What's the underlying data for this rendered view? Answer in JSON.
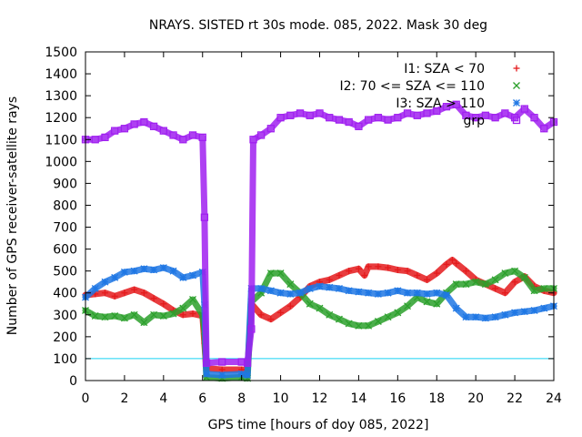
{
  "chart_data": {
    "type": "scatter",
    "title": "NRAYS. SISTED rt 30s mode. 085, 2022. Mask 30 deg",
    "xlabel": "GPS time [hours of doy 085, 2022]",
    "ylabel": "Number of GPS receiver-satellite rays",
    "xlim": [
      0,
      24
    ],
    "ylim": [
      0,
      1500
    ],
    "xticks": [
      "0",
      "2",
      "4",
      "6",
      "8",
      "10",
      "12",
      "14",
      "16",
      "18",
      "20",
      "22",
      "24"
    ],
    "yticks": [
      "0",
      "100",
      "200",
      "300",
      "400",
      "500",
      "600",
      "700",
      "800",
      "900",
      "1000",
      "1100",
      "1200",
      "1300",
      "1400",
      "1500"
    ],
    "grid": false,
    "legend_position": "top-right",
    "reference_line": {
      "y": 100,
      "color": "#19d3f3"
    },
    "series": [
      {
        "name": "I1: SZA < 70",
        "marker": "+",
        "color": "#e41a1c",
        "points": [
          [
            0,
            390
          ],
          [
            0.5,
            395
          ],
          [
            1,
            400
          ],
          [
            1.5,
            385
          ],
          [
            2,
            400
          ],
          [
            2.5,
            415
          ],
          [
            3,
            400
          ],
          [
            3.5,
            375
          ],
          [
            4,
            350
          ],
          [
            4.5,
            320
          ],
          [
            5,
            300
          ],
          [
            5.5,
            305
          ],
          [
            6,
            295
          ],
          [
            6.1,
            170
          ],
          [
            6.2,
            55
          ],
          [
            7,
            50
          ],
          [
            8,
            50
          ],
          [
            8.3,
            45
          ],
          [
            8.5,
            350
          ],
          [
            9,
            300
          ],
          [
            9.5,
            280
          ],
          [
            10,
            310
          ],
          [
            10.5,
            340
          ],
          [
            11,
            380
          ],
          [
            11.5,
            430
          ],
          [
            12,
            450
          ],
          [
            12.5,
            460
          ],
          [
            13,
            480
          ],
          [
            13.5,
            500
          ],
          [
            14,
            510
          ],
          [
            14.3,
            480
          ],
          [
            14.5,
            520
          ],
          [
            15,
            520
          ],
          [
            15.5,
            515
          ],
          [
            16,
            505
          ],
          [
            16.5,
            500
          ],
          [
            17,
            480
          ],
          [
            17.5,
            460
          ],
          [
            18,
            490
          ],
          [
            18.5,
            530
          ],
          [
            18.8,
            550
          ],
          [
            19,
            535
          ],
          [
            19.5,
            500
          ],
          [
            20,
            460
          ],
          [
            20.5,
            440
          ],
          [
            21,
            420
          ],
          [
            21.5,
            400
          ],
          [
            22,
            450
          ],
          [
            22.5,
            475
          ],
          [
            23,
            430
          ],
          [
            23.5,
            410
          ],
          [
            24,
            400
          ]
        ]
      },
      {
        "name": "I2: 70 <= SZA <= 110",
        "marker": "x",
        "color": "#2ca02c",
        "points": [
          [
            0,
            320
          ],
          [
            0.5,
            295
          ],
          [
            1,
            290
          ],
          [
            1.5,
            295
          ],
          [
            2,
            285
          ],
          [
            2.5,
            300
          ],
          [
            3,
            265
          ],
          [
            3.5,
            300
          ],
          [
            4,
            295
          ],
          [
            4.5,
            305
          ],
          [
            5,
            330
          ],
          [
            5.5,
            370
          ],
          [
            6,
            300
          ],
          [
            6.1,
            225
          ],
          [
            6.2,
            15
          ],
          [
            7,
            10
          ],
          [
            8,
            15
          ],
          [
            8.3,
            10
          ],
          [
            8.5,
            360
          ],
          [
            9,
            400
          ],
          [
            9.5,
            490
          ],
          [
            10,
            490
          ],
          [
            10.5,
            440
          ],
          [
            11,
            400
          ],
          [
            11.5,
            350
          ],
          [
            12,
            330
          ],
          [
            12.5,
            300
          ],
          [
            13,
            280
          ],
          [
            13.5,
            260
          ],
          [
            14,
            250
          ],
          [
            14.5,
            250
          ],
          [
            15,
            270
          ],
          [
            15.5,
            290
          ],
          [
            16,
            310
          ],
          [
            16.5,
            340
          ],
          [
            17,
            380
          ],
          [
            17.5,
            360
          ],
          [
            18,
            350
          ],
          [
            18.5,
            400
          ],
          [
            19,
            440
          ],
          [
            19.5,
            440
          ],
          [
            20,
            450
          ],
          [
            20.5,
            440
          ],
          [
            21,
            460
          ],
          [
            21.5,
            490
          ],
          [
            22,
            500
          ],
          [
            22.5,
            470
          ],
          [
            23,
            410
          ],
          [
            23.5,
            420
          ],
          [
            24,
            420
          ]
        ]
      },
      {
        "name": "I3: SZA > 110",
        "marker": "*",
        "color": "#1f77e4",
        "points": [
          [
            0,
            380
          ],
          [
            0.5,
            420
          ],
          [
            1,
            450
          ],
          [
            1.5,
            470
          ],
          [
            2,
            495
          ],
          [
            2.5,
            500
          ],
          [
            3,
            510
          ],
          [
            3.5,
            505
          ],
          [
            4,
            515
          ],
          [
            4.5,
            500
          ],
          [
            5,
            470
          ],
          [
            5.5,
            480
          ],
          [
            6,
            495
          ],
          [
            6.1,
            345
          ],
          [
            6.2,
            30
          ],
          [
            7,
            25
          ],
          [
            8,
            30
          ],
          [
            8.3,
            25
          ],
          [
            8.5,
            420
          ],
          [
            9,
            420
          ],
          [
            9.5,
            410
          ],
          [
            10,
            400
          ],
          [
            10.5,
            395
          ],
          [
            11,
            400
          ],
          [
            11.5,
            420
          ],
          [
            12,
            430
          ],
          [
            12.5,
            425
          ],
          [
            13,
            420
          ],
          [
            13.5,
            410
          ],
          [
            14,
            405
          ],
          [
            14.5,
            400
          ],
          [
            15,
            395
          ],
          [
            15.5,
            400
          ],
          [
            16,
            410
          ],
          [
            16.5,
            400
          ],
          [
            17,
            400
          ],
          [
            17.5,
            395
          ],
          [
            18,
            400
          ],
          [
            18.5,
            390
          ],
          [
            19,
            330
          ],
          [
            19.5,
            290
          ],
          [
            20,
            290
          ],
          [
            20.5,
            285
          ],
          [
            21,
            290
          ],
          [
            21.5,
            300
          ],
          [
            22,
            310
          ],
          [
            22.5,
            315
          ],
          [
            23,
            320
          ],
          [
            23.5,
            330
          ],
          [
            24,
            340
          ]
        ]
      },
      {
        "name": "grp",
        "marker": "square",
        "color": "#a020f0",
        "points": [
          [
            0,
            1100
          ],
          [
            0.5,
            1100
          ],
          [
            1,
            1110
          ],
          [
            1.5,
            1140
          ],
          [
            2,
            1150
          ],
          [
            2.5,
            1170
          ],
          [
            3,
            1180
          ],
          [
            3.5,
            1160
          ],
          [
            4,
            1140
          ],
          [
            4.5,
            1120
          ],
          [
            5,
            1100
          ],
          [
            5.5,
            1120
          ],
          [
            6,
            1110
          ],
          [
            6.1,
            745
          ],
          [
            6.2,
            80
          ],
          [
            7,
            85
          ],
          [
            8,
            85
          ],
          [
            8.3,
            80
          ],
          [
            8.5,
            235
          ],
          [
            8.6,
            1100
          ],
          [
            9,
            1120
          ],
          [
            9.5,
            1150
          ],
          [
            10,
            1200
          ],
          [
            10.5,
            1210
          ],
          [
            11,
            1220
          ],
          [
            11.5,
            1210
          ],
          [
            12,
            1220
          ],
          [
            12.5,
            1200
          ],
          [
            13,
            1190
          ],
          [
            13.5,
            1180
          ],
          [
            14,
            1160
          ],
          [
            14.5,
            1190
          ],
          [
            15,
            1200
          ],
          [
            15.5,
            1190
          ],
          [
            16,
            1200
          ],
          [
            16.5,
            1220
          ],
          [
            17,
            1210
          ],
          [
            17.5,
            1220
          ],
          [
            18,
            1230
          ],
          [
            18.5,
            1250
          ],
          [
            19,
            1260
          ],
          [
            19.5,
            1210
          ],
          [
            20,
            1200
          ],
          [
            20.5,
            1210
          ],
          [
            21,
            1200
          ],
          [
            21.5,
            1220
          ],
          [
            22,
            1200
          ],
          [
            22.5,
            1240
          ],
          [
            23,
            1200
          ],
          [
            23.5,
            1150
          ],
          [
            24,
            1180
          ]
        ]
      }
    ]
  }
}
